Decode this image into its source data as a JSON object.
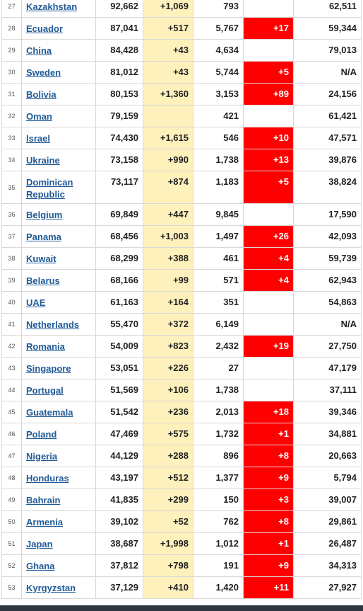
{
  "rows": [
    {
      "idx": "27",
      "country": "Kazakhstan",
      "total_cases": "92,662",
      "new_cases": "+1,069",
      "total_deaths": "793",
      "new_deaths": "",
      "total_recovered": "62,511"
    },
    {
      "idx": "28",
      "country": "Ecuador",
      "total_cases": "87,041",
      "new_cases": "+517",
      "total_deaths": "5,767",
      "new_deaths": "+17",
      "total_recovered": "59,344"
    },
    {
      "idx": "29",
      "country": "China",
      "total_cases": "84,428",
      "new_cases": "+43",
      "total_deaths": "4,634",
      "new_deaths": "",
      "total_recovered": "79,013"
    },
    {
      "idx": "30",
      "country": "Sweden",
      "total_cases": "81,012",
      "new_cases": "+43",
      "total_deaths": "5,744",
      "new_deaths": "+5",
      "total_recovered": "N/A"
    },
    {
      "idx": "31",
      "country": "Bolivia",
      "total_cases": "80,153",
      "new_cases": "+1,360",
      "total_deaths": "3,153",
      "new_deaths": "+89",
      "total_recovered": "24,156"
    },
    {
      "idx": "32",
      "country": "Oman",
      "total_cases": "79,159",
      "new_cases": "",
      "total_deaths": "421",
      "new_deaths": "",
      "total_recovered": "61,421"
    },
    {
      "idx": "33",
      "country": "Israel",
      "total_cases": "74,430",
      "new_cases": "+1,615",
      "total_deaths": "546",
      "new_deaths": "+10",
      "total_recovered": "47,571"
    },
    {
      "idx": "34",
      "country": "Ukraine",
      "total_cases": "73,158",
      "new_cases": "+990",
      "total_deaths": "1,738",
      "new_deaths": "+13",
      "total_recovered": "39,876"
    },
    {
      "idx": "35",
      "country": "Dominican Republic",
      "total_cases": "73,117",
      "new_cases": "+874",
      "total_deaths": "1,183",
      "new_deaths": "+5",
      "total_recovered": "38,824"
    },
    {
      "idx": "36",
      "country": "Belgium",
      "total_cases": "69,849",
      "new_cases": "+447",
      "total_deaths": "9,845",
      "new_deaths": "",
      "total_recovered": "17,590"
    },
    {
      "idx": "37",
      "country": "Panama",
      "total_cases": "68,456",
      "new_cases": "+1,003",
      "total_deaths": "1,497",
      "new_deaths": "+26",
      "total_recovered": "42,093"
    },
    {
      "idx": "38",
      "country": "Kuwait",
      "total_cases": "68,299",
      "new_cases": "+388",
      "total_deaths": "461",
      "new_deaths": "+4",
      "total_recovered": "59,739"
    },
    {
      "idx": "39",
      "country": "Belarus",
      "total_cases": "68,166",
      "new_cases": "+99",
      "total_deaths": "571",
      "new_deaths": "+4",
      "total_recovered": "62,943"
    },
    {
      "idx": "40",
      "country": "UAE",
      "total_cases": "61,163",
      "new_cases": "+164",
      "total_deaths": "351",
      "new_deaths": "",
      "total_recovered": "54,863"
    },
    {
      "idx": "41",
      "country": "Netherlands",
      "total_cases": "55,470",
      "new_cases": "+372",
      "total_deaths": "6,149",
      "new_deaths": "",
      "total_recovered": "N/A"
    },
    {
      "idx": "42",
      "country": "Romania",
      "total_cases": "54,009",
      "new_cases": "+823",
      "total_deaths": "2,432",
      "new_deaths": "+19",
      "total_recovered": "27,750"
    },
    {
      "idx": "43",
      "country": "Singapore",
      "total_cases": "53,051",
      "new_cases": "+226",
      "total_deaths": "27",
      "new_deaths": "",
      "total_recovered": "47,179"
    },
    {
      "idx": "44",
      "country": "Portugal",
      "total_cases": "51,569",
      "new_cases": "+106",
      "total_deaths": "1,738",
      "new_deaths": "",
      "total_recovered": "37,111"
    },
    {
      "idx": "45",
      "country": "Guatemala",
      "total_cases": "51,542",
      "new_cases": "+236",
      "total_deaths": "2,013",
      "new_deaths": "+18",
      "total_recovered": "39,346"
    },
    {
      "idx": "46",
      "country": "Poland",
      "total_cases": "47,469",
      "new_cases": "+575",
      "total_deaths": "1,732",
      "new_deaths": "+1",
      "total_recovered": "34,881"
    },
    {
      "idx": "47",
      "country": "Nigeria",
      "total_cases": "44,129",
      "new_cases": "+288",
      "total_deaths": "896",
      "new_deaths": "+8",
      "total_recovered": "20,663"
    },
    {
      "idx": "48",
      "country": "Honduras",
      "total_cases": "43,197",
      "new_cases": "+512",
      "total_deaths": "1,377",
      "new_deaths": "+9",
      "total_recovered": "5,794"
    },
    {
      "idx": "49",
      "country": "Bahrain",
      "total_cases": "41,835",
      "new_cases": "+299",
      "total_deaths": "150",
      "new_deaths": "+3",
      "total_recovered": "39,007"
    },
    {
      "idx": "50",
      "country": "Armenia",
      "total_cases": "39,102",
      "new_cases": "+52",
      "total_deaths": "762",
      "new_deaths": "+8",
      "total_recovered": "29,861"
    },
    {
      "idx": "51",
      "country": "Japan",
      "total_cases": "38,687",
      "new_cases": "+1,998",
      "total_deaths": "1,012",
      "new_deaths": "+1",
      "total_recovered": "26,487"
    },
    {
      "idx": "52",
      "country": "Ghana",
      "total_cases": "37,812",
      "new_cases": "+798",
      "total_deaths": "191",
      "new_deaths": "+9",
      "total_recovered": "34,313"
    },
    {
      "idx": "53",
      "country": "Kyrgyzstan",
      "total_cases": "37,129",
      "new_cases": "+410",
      "total_deaths": "1,420",
      "new_deaths": "+11",
      "total_recovered": "27,927"
    }
  ],
  "colors": {
    "new_cases_bg": "#fff1bc",
    "new_deaths_bg": "#ff0000",
    "link": "#1f5a96"
  }
}
